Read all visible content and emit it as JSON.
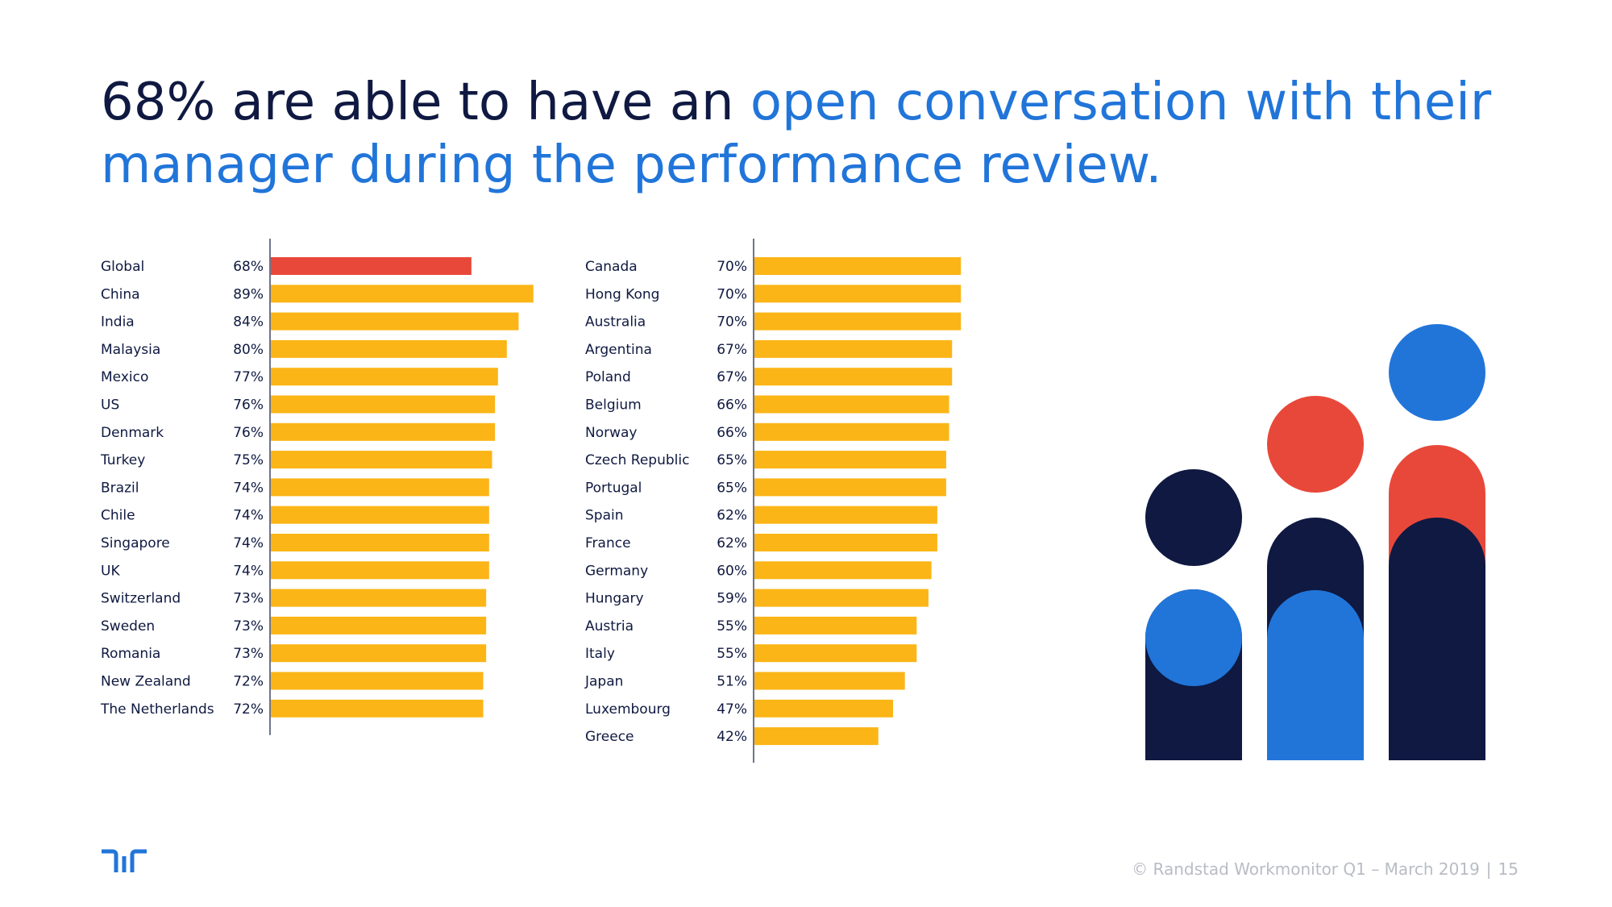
{
  "title": {
    "part1": "68% are able to have an ",
    "part2": "open conversation with their manager during the performance review."
  },
  "colors": {
    "global": "#e8483a",
    "bar": "#fbb516",
    "dark": "#0f1941",
    "blue": "#2175d9",
    "red": "#e8483a"
  },
  "chart_data": [
    {
      "type": "bar",
      "orientation": "horizontal",
      "xlim": [
        0,
        100
      ],
      "categories": [
        "Global",
        "China",
        "India",
        "Malaysia",
        "Mexico",
        "US",
        "Denmark",
        "Turkey",
        "Brazil",
        "Chile",
        "Singapore",
        "UK",
        "Switzerland",
        "Sweden",
        "Romania",
        "New Zealand",
        "The Netherlands"
      ],
      "values": [
        68,
        89,
        84,
        80,
        77,
        76,
        76,
        75,
        74,
        74,
        74,
        74,
        73,
        73,
        73,
        72,
        72
      ],
      "value_labels": [
        "68%",
        "89%",
        "84%",
        "80%",
        "77%",
        "76%",
        "76%",
        "75%",
        "74%",
        "74%",
        "74%",
        "74%",
        "73%",
        "73%",
        "73%",
        "72%",
        "72%"
      ]
    },
    {
      "type": "bar",
      "orientation": "horizontal",
      "xlim": [
        0,
        100
      ],
      "categories": [
        "Canada",
        "Hong Kong",
        "Australia",
        "Argentina",
        "Poland",
        "Belgium",
        "Norway",
        "Czech Republic",
        "Portugal",
        "Spain",
        "France",
        "Germany",
        "Hungary",
        "Austria",
        "Italy",
        "Japan",
        "Luxembourg",
        "Greece"
      ],
      "values": [
        70,
        70,
        70,
        67,
        67,
        66,
        66,
        65,
        65,
        62,
        62,
        60,
        59,
        55,
        55,
        51,
        47,
        42
      ],
      "value_labels": [
        "70%",
        "70%",
        "70%",
        "67%",
        "67%",
        "66%",
        "66%",
        "65%",
        "65%",
        "62%",
        "62%",
        "60%",
        "59%",
        "55%",
        "55%",
        "51%",
        "47%",
        "42%"
      ]
    }
  ],
  "footer": {
    "source": "© Randstad Workmonitor Q1 – March 2019",
    "separator": "|",
    "page": "15"
  }
}
